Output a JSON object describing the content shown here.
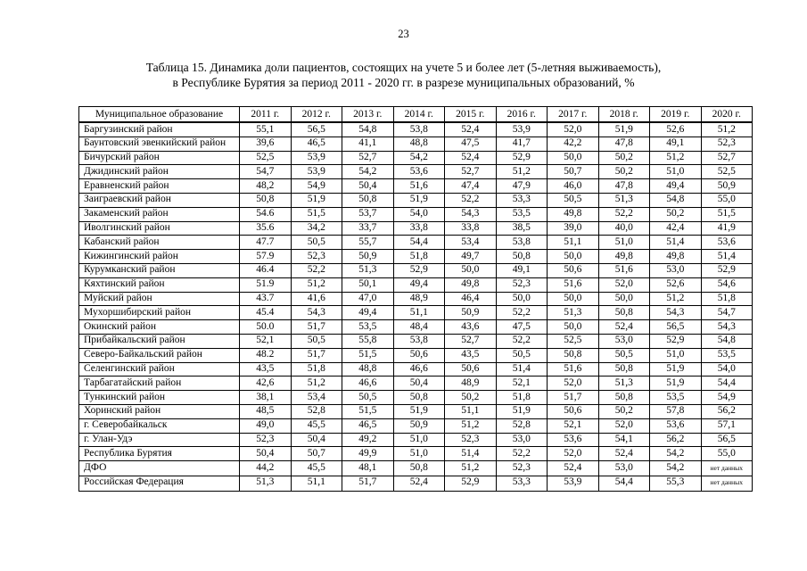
{
  "page": {
    "number": "23"
  },
  "title": {
    "line1": "Таблица 15. Динамика доли пациентов, состоящих на учете 5 и более лет (5-летняя выживаемость),",
    "line2": "в Республике Бурятия за период 2011 - 2020 гг. в разрезе муниципальных образований, %"
  },
  "table": {
    "columns": [
      "Муниципальное образование",
      "2011 г.",
      "2012 г.",
      "2013 г.",
      "2014 г.",
      "2015 г.",
      "2016 г.",
      "2017 г.",
      "2018 г.",
      "2019 г.",
      "2020 г."
    ],
    "no_data_label": "нет данных",
    "rows": [
      {
        "name": "Баргузинский район",
        "values": [
          "55,1",
          "56,5",
          "54,8",
          "53,8",
          "52,4",
          "53,9",
          "52,0",
          "51,9",
          "52,6",
          "51,2"
        ]
      },
      {
        "name": "Баунтовский эвенкийский район",
        "values": [
          "39,6",
          "46,5",
          "41,1",
          "48,8",
          "47,5",
          "41,7",
          "42,2",
          "47,8",
          "49,1",
          "52,3"
        ]
      },
      {
        "name": "Бичурский район",
        "values": [
          "52,5",
          "53,9",
          "52,7",
          "54,2",
          "52,4",
          "52,9",
          "50,0",
          "50,2",
          "51,2",
          "52,7"
        ]
      },
      {
        "name": "Джидинский район",
        "values": [
          "54,7",
          "53,9",
          "54,2",
          "53,6",
          "52,7",
          "51,2",
          "50,7",
          "50,2",
          "51,0",
          "52,5"
        ]
      },
      {
        "name": "Еравненский район",
        "values": [
          "48,2",
          "54,9",
          "50,4",
          "51,6",
          "47,4",
          "47,9",
          "46,0",
          "47,8",
          "49,4",
          "50,9"
        ]
      },
      {
        "name": "Заиграевский район",
        "values": [
          "50,8",
          "51,9",
          "50,8",
          "51,9",
          "52,2",
          "53,3",
          "50,5",
          "51,3",
          "54,8",
          "55,0"
        ]
      },
      {
        "name": "Закаменский район",
        "values": [
          "54.6",
          "51,5",
          "53,7",
          "54,0",
          "54,3",
          "53,5",
          "49,8",
          "52,2",
          "50,2",
          "51,5"
        ]
      },
      {
        "name": "Иволгинский район",
        "values": [
          "35.6",
          "34,2",
          "33,7",
          "33,8",
          "33,8",
          "38,5",
          "39,0",
          "40,0",
          "42,4",
          "41,9"
        ]
      },
      {
        "name": "Кабанский район",
        "values": [
          "47.7",
          "50,5",
          "55,7",
          "54,4",
          "53,4",
          "53,8",
          "51,1",
          "51,0",
          "51,4",
          "53,6"
        ]
      },
      {
        "name": "Кижингинский район",
        "values": [
          "57.9",
          "52,3",
          "50,9",
          "51,8",
          "49,7",
          "50,8",
          "50,0",
          "49,8",
          "49,8",
          "51,4"
        ]
      },
      {
        "name": "Курумканский район",
        "values": [
          "46.4",
          "52,2",
          "51,3",
          "52,9",
          "50,0",
          "49,1",
          "50,6",
          "51,6",
          "53,0",
          "52,9"
        ]
      },
      {
        "name": "Кяхтинский район",
        "values": [
          "51.9",
          "51,2",
          "50,1",
          "49,4",
          "49,8",
          "52,3",
          "51,6",
          "52,0",
          "52,6",
          "54,6"
        ]
      },
      {
        "name": "Муйский район",
        "values": [
          "43.7",
          "41,6",
          "47,0",
          "48,9",
          "46,4",
          "50,0",
          "50,0",
          "50,0",
          "51,2",
          "51,8"
        ]
      },
      {
        "name": "Мухоршибирский район",
        "values": [
          "45.4",
          "54,3",
          "49,4",
          "51,1",
          "50,9",
          "52,2",
          "51,3",
          "50,8",
          "54,3",
          "54,7"
        ]
      },
      {
        "name": "Окинский район",
        "values": [
          "50.0",
          "51,7",
          "53,5",
          "48,4",
          "43,6",
          "47,5",
          "50,0",
          "52,4",
          "56,5",
          "54,3"
        ]
      },
      {
        "name": "Прибайкальский район",
        "values": [
          "52,1",
          "50,5",
          "55,8",
          "53,8",
          "52,7",
          "52,2",
          "52,5",
          "53,0",
          "52,9",
          "54,8"
        ]
      },
      {
        "name": "Северо-Байкальский район",
        "values": [
          "48.2",
          "51,7",
          "51,5",
          "50,6",
          "43,5",
          "50,5",
          "50,8",
          "50,5",
          "51,0",
          "53,5"
        ]
      },
      {
        "name": "Селенгинский район",
        "values": [
          "43,5",
          "51,8",
          "48,8",
          "46,6",
          "50,6",
          "51,4",
          "51,6",
          "50,8",
          "51,9",
          "54,0"
        ]
      },
      {
        "name": "Тарбагатайский район",
        "values": [
          "42,6",
          "51,2",
          "46,6",
          "50,4",
          "48,9",
          "52,1",
          "52,0",
          "51,3",
          "51,9",
          "54,4"
        ]
      },
      {
        "name": "Тункинский район",
        "values": [
          "38,1",
          "53,4",
          "50,5",
          "50,8",
          "50,2",
          "51,8",
          "51,7",
          "50,8",
          "53,5",
          "54,9"
        ]
      },
      {
        "name": "Хоринский район",
        "values": [
          "48,5",
          "52,8",
          "51,5",
          "51,9",
          "51,1",
          "51,9",
          "50,6",
          "50,2",
          "57,8",
          "56,2"
        ]
      },
      {
        "name": "г. Северобайкальск",
        "values": [
          "49,0",
          "45,5",
          "46,5",
          "50,9",
          "51,2",
          "52,8",
          "52,1",
          "52,0",
          "53,6",
          "57,1"
        ]
      },
      {
        "name": "г. Улан-Удэ",
        "values": [
          "52,3",
          "50,4",
          "49,2",
          "51,0",
          "52,3",
          "53,0",
          "53,6",
          "54,1",
          "56,2",
          "56,5"
        ]
      },
      {
        "name": "Республика Бурятия",
        "values": [
          "50,4",
          "50,7",
          "49,9",
          "51,0",
          "51,4",
          "52,2",
          "52,0",
          "52,4",
          "54,2",
          "55,0"
        ]
      },
      {
        "name": "ДФО",
        "values": [
          "44,2",
          "45,5",
          "48,1",
          "50,8",
          "51,2",
          "52,3",
          "52,4",
          "53,0",
          "54,2",
          "нет данных"
        ]
      },
      {
        "name": "Российская Федерация",
        "values": [
          "51,3",
          "51,1",
          "51,7",
          "52,4",
          "52,9",
          "53,3",
          "53,9",
          "54,4",
          "55,3",
          "нет данных"
        ]
      }
    ]
  }
}
